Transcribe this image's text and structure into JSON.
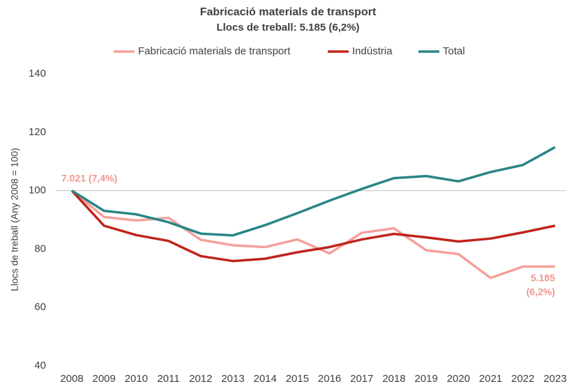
{
  "chart_data": {
    "type": "line",
    "title": "Fabricació materials de transport",
    "subtitle": "Llocs de treball: 5.185 (6,2%)",
    "y_label": "Llocs de treball (Any 2008 = 100)",
    "categories": [
      "2008",
      "2009",
      "2010",
      "2011",
      "2012",
      "2013",
      "2014",
      "2015",
      "2016",
      "2017",
      "2018",
      "2019",
      "2020",
      "2021",
      "2022",
      "2023"
    ],
    "series": [
      {
        "name": "Fabricació materials de transport",
        "color": "#f4a09a",
        "values": [
          100,
          91,
          89.8,
          90.7,
          83.2,
          81.3,
          80.7,
          83.3,
          78.5,
          85.6,
          87.1,
          79.6,
          78.3,
          70.1,
          74,
          74
        ]
      },
      {
        "name": "Indústria",
        "color": "#c0241c",
        "values": [
          100,
          88,
          84.8,
          82.8,
          77.6,
          75.9,
          76.7,
          78.9,
          80.7,
          83.3,
          85.2,
          84,
          82.6,
          83.6,
          85.7,
          88
        ]
      },
      {
        "name": "Total",
        "color": "#2a8585",
        "values": [
          100,
          93.1,
          91.9,
          89.2,
          85.3,
          84.7,
          88.2,
          92.3,
          96.6,
          100.6,
          104.3,
          105,
          103.2,
          106.4,
          108.8,
          114.9
        ]
      }
    ],
    "annotations": [
      "7.021 (7,4%)",
      "5.185",
      "(6,2%)"
    ],
    "annotation_color": "#f0958c",
    "ylim": [
      40,
      140
    ],
    "yticks": [
      40,
      60,
      80,
      100,
      120,
      140
    ],
    "hline": 100
  }
}
